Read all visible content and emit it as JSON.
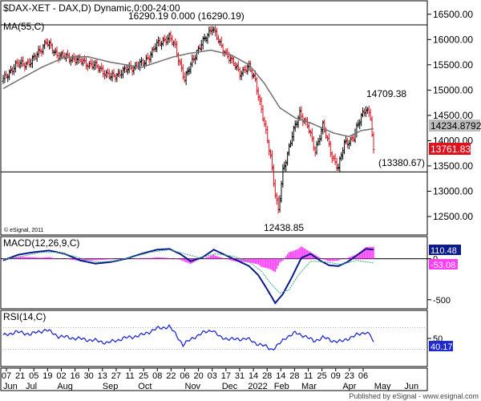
{
  "chart_data": [
    {
      "type": "bar",
      "title": "$DAX-XET - DAX,D) Dynamic,0:00-24:00",
      "style": "OHLC bars",
      "ylim": [
        12150,
        16750
      ],
      "y_ticks": [
        "16500.00",
        "16000.00",
        "15500.00",
        "15000.00",
        "14500.00",
        "14000.00",
        "13500.00",
        "13000.00",
        "12500.00"
      ],
      "y_tick_values": [
        16500,
        16000,
        15500,
        15000,
        14500,
        14000,
        13500,
        13000,
        12500
      ],
      "header_values": "16290.19   0.000 (16290.19)",
      "ma_label": "MA(55,C)",
      "ma_value": "14234.8792",
      "last_price": "13761.83",
      "horizontal_lines": [
        16290.19,
        13380.67
      ],
      "annotations": [
        {
          "text": "14709.38",
          "value": 14709.38
        },
        {
          "text": "12438.85",
          "value": 12438.85
        },
        {
          "text": "(13380.67)",
          "value": 13380.67
        }
      ],
      "copyright": "© eSignal, 2011",
      "close_anchors": [
        [
          0,
          15200
        ],
        [
          8,
          15500
        ],
        [
          18,
          15550
        ],
        [
          28,
          15950
        ],
        [
          35,
          15700
        ],
        [
          48,
          15600
        ],
        [
          62,
          15450
        ],
        [
          70,
          15250
        ],
        [
          80,
          15400
        ],
        [
          92,
          15550
        ],
        [
          100,
          15900
        ],
        [
          108,
          16050
        ],
        [
          112,
          15850
        ],
        [
          118,
          15200
        ],
        [
          124,
          15650
        ],
        [
          130,
          15950
        ],
        [
          136,
          16250
        ],
        [
          141,
          15900
        ],
        [
          148,
          15600
        ],
        [
          154,
          15350
        ],
        [
          160,
          15450
        ],
        [
          164,
          15200
        ],
        [
          168,
          14600
        ],
        [
          171,
          14150
        ],
        [
          174,
          13700
        ],
        [
          177,
          12950
        ],
        [
          179,
          12600
        ],
        [
          182,
          13400
        ],
        [
          188,
          14100
        ],
        [
          193,
          14550
        ],
        [
          198,
          14300
        ],
        [
          203,
          13800
        ],
        [
          208,
          14300
        ],
        [
          214,
          13700
        ],
        [
          218,
          13450
        ],
        [
          222,
          13950
        ],
        [
          228,
          14050
        ],
        [
          233,
          14500
        ],
        [
          236,
          14650
        ],
        [
          239,
          14450
        ],
        [
          241,
          13762
        ]
      ],
      "ma_anchors": [
        [
          0,
          15030
        ],
        [
          10,
          15200
        ],
        [
          25,
          15450
        ],
        [
          40,
          15650
        ],
        [
          55,
          15660
        ],
        [
          70,
          15550
        ],
        [
          90,
          15450
        ],
        [
          110,
          15650
        ],
        [
          120,
          15720
        ],
        [
          135,
          15790
        ],
        [
          148,
          15700
        ],
        [
          160,
          15500
        ],
        [
          170,
          15130
        ],
        [
          180,
          14650
        ],
        [
          190,
          14450
        ],
        [
          200,
          14350
        ],
        [
          215,
          14150
        ],
        [
          225,
          14080
        ],
        [
          233,
          14200
        ],
        [
          241,
          14234.88
        ]
      ]
    },
    {
      "type": "line",
      "title": "MACD(12,26,9,C)",
      "ylim": [
        -600,
        260
      ],
      "y_ticks": [
        "0",
        "-500"
      ],
      "y_tick_values": [
        0,
        -500
      ],
      "macd_value": "110.48",
      "signal_value": "-53.08",
      "histogram_colors": "magenta",
      "macd_anchors": [
        [
          0,
          -20
        ],
        [
          10,
          50
        ],
        [
          20,
          80
        ],
        [
          30,
          100
        ],
        [
          40,
          60
        ],
        [
          50,
          -20
        ],
        [
          60,
          -60
        ],
        [
          70,
          -40
        ],
        [
          80,
          0
        ],
        [
          90,
          60
        ],
        [
          100,
          110
        ],
        [
          108,
          120
        ],
        [
          115,
          60
        ],
        [
          122,
          -30
        ],
        [
          130,
          20
        ],
        [
          137,
          110
        ],
        [
          145,
          40
        ],
        [
          152,
          -20
        ],
        [
          160,
          -90
        ],
        [
          166,
          -200
        ],
        [
          172,
          -380
        ],
        [
          177,
          -540
        ],
        [
          182,
          -430
        ],
        [
          188,
          -220
        ],
        [
          194,
          10
        ],
        [
          200,
          60
        ],
        [
          206,
          -20
        ],
        [
          212,
          -80
        ],
        [
          218,
          -90
        ],
        [
          224,
          -40
        ],
        [
          230,
          40
        ],
        [
          236,
          120
        ],
        [
          241,
          110.48
        ]
      ],
      "signal_anchors": [
        [
          0,
          -10
        ],
        [
          12,
          30
        ],
        [
          24,
          75
        ],
        [
          36,
          80
        ],
        [
          48,
          20
        ],
        [
          60,
          -40
        ],
        [
          72,
          -30
        ],
        [
          84,
          20
        ],
        [
          96,
          80
        ],
        [
          108,
          110
        ],
        [
          118,
          60
        ],
        [
          128,
          10
        ],
        [
          138,
          60
        ],
        [
          150,
          30
        ],
        [
          160,
          -40
        ],
        [
          168,
          -150
        ],
        [
          174,
          -300
        ],
        [
          180,
          -420
        ],
        [
          186,
          -380
        ],
        [
          192,
          -200
        ],
        [
          200,
          -30
        ],
        [
          210,
          -40
        ],
        [
          220,
          -70
        ],
        [
          230,
          -20
        ],
        [
          241,
          -53.08
        ]
      ]
    },
    {
      "type": "line",
      "title": "RSI(14,C)",
      "ylim": [
        0,
        100
      ],
      "y_ticks": [
        "50"
      ],
      "y_tick_values": [
        50
      ],
      "value_label": "40.17",
      "rsi_anchors": [
        [
          0,
          55
        ],
        [
          8,
          62
        ],
        [
          18,
          58
        ],
        [
          28,
          66
        ],
        [
          36,
          54
        ],
        [
          48,
          50
        ],
        [
          60,
          46
        ],
        [
          68,
          42
        ],
        [
          78,
          50
        ],
        [
          90,
          56
        ],
        [
          100,
          68
        ],
        [
          108,
          72
        ],
        [
          113,
          55
        ],
        [
          117,
          38
        ],
        [
          124,
          52
        ],
        [
          130,
          60
        ],
        [
          136,
          66
        ],
        [
          141,
          52
        ],
        [
          150,
          48
        ],
        [
          158,
          50
        ],
        [
          164,
          42
        ],
        [
          170,
          36
        ],
        [
          175,
          30
        ],
        [
          179,
          38
        ],
        [
          184,
          52
        ],
        [
          190,
          60
        ],
        [
          196,
          55
        ],
        [
          202,
          45
        ],
        [
          208,
          52
        ],
        [
          214,
          46
        ],
        [
          220,
          44
        ],
        [
          226,
          52
        ],
        [
          232,
          58
        ],
        [
          236,
          62
        ],
        [
          239,
          56
        ],
        [
          241,
          40.17
        ]
      ]
    }
  ],
  "x_axis": {
    "day_labels": [
      "07",
      "21",
      "05",
      "19",
      "02",
      "16",
      "30",
      "13",
      "27",
      "11",
      "25",
      "08",
      "22",
      "06",
      "20",
      "03",
      "17",
      "31",
      "14",
      "28",
      "14",
      "28",
      "11",
      "25",
      "09",
      "23",
      "06"
    ],
    "day_bar_index": [
      0,
      10,
      20,
      30,
      40,
      50,
      60,
      70,
      80,
      90,
      100,
      110,
      120,
      130,
      140,
      150,
      160,
      170,
      180,
      190,
      200,
      210,
      220,
      230,
      240,
      250,
      260
    ],
    "month_labels": [
      "Jun",
      "Jul",
      "Aug",
      "Sep",
      "Oct",
      "Nov",
      "Dec",
      "2022",
      "Feb",
      "Mar",
      "Apr",
      "May",
      "Jun"
    ],
    "month_bar_index": [
      0,
      14,
      37,
      70,
      96,
      130,
      157,
      176,
      195,
      215,
      245,
      268,
      290
    ]
  },
  "footer": "Published by eSignal - www.esignal.com"
}
